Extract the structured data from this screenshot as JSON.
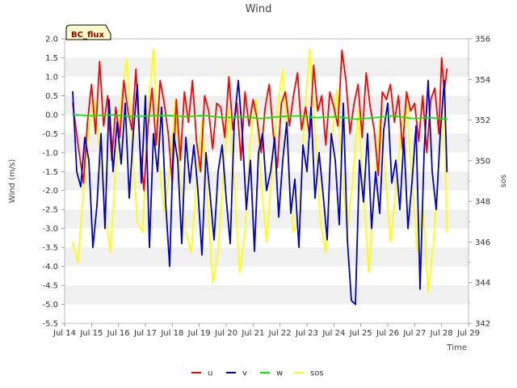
{
  "chart_data": {
    "type": "line",
    "title": "Wind",
    "badge": "BC_flux",
    "xlabel": "Time",
    "ylabel": "Wind (m/s)",
    "y2label": "sos",
    "xlim": [
      14,
      29
    ],
    "ylim": [
      -5.5,
      2.0
    ],
    "y2lim": [
      342,
      356
    ],
    "grid": "horizontal bands",
    "legend_position": "bottom-center",
    "x_ticks": [
      {
        "value": 14,
        "label": "Jul 14"
      },
      {
        "value": 15,
        "label": "Jul 15"
      },
      {
        "value": 16,
        "label": "Jul 16"
      },
      {
        "value": 17,
        "label": "Jul 17"
      },
      {
        "value": 18,
        "label": "Jul 18"
      },
      {
        "value": 19,
        "label": "Jul 19"
      },
      {
        "value": 20,
        "label": "Jul 20"
      },
      {
        "value": 21,
        "label": "Jul 21"
      },
      {
        "value": 22,
        "label": "Jul 22"
      },
      {
        "value": 23,
        "label": "Jul 23"
      },
      {
        "value": 24,
        "label": "Jul 24"
      },
      {
        "value": 25,
        "label": "Jul 25"
      },
      {
        "value": 26,
        "label": "Jul 26"
      },
      {
        "value": 27,
        "label": "Jul 27"
      },
      {
        "value": 28,
        "label": "Jul 28"
      },
      {
        "value": 29,
        "label": "Jul 29"
      }
    ],
    "y_ticks": [
      {
        "value": 2.0,
        "label": "2.0"
      },
      {
        "value": 1.5,
        "label": "1.5"
      },
      {
        "value": 1.0,
        "label": "1.0"
      },
      {
        "value": 0.5,
        "label": "0.5"
      },
      {
        "value": 0.0,
        "label": "0.0"
      },
      {
        "value": -0.5,
        "label": "-0.5"
      },
      {
        "value": -1.0,
        "label": "-1.0"
      },
      {
        "value": -1.5,
        "label": "-1.5"
      },
      {
        "value": -2.0,
        "label": "-2.0"
      },
      {
        "value": -2.5,
        "label": "-2.5"
      },
      {
        "value": -3.0,
        "label": "-3.0"
      },
      {
        "value": -3.5,
        "label": "-3.5"
      },
      {
        "value": -4.0,
        "label": "-4.0"
      },
      {
        "value": -4.5,
        "label": "-4.5"
      },
      {
        "value": -5.0,
        "label": "-5.0"
      },
      {
        "value": -5.5,
        "label": "-5.5"
      }
    ],
    "y2_ticks": [
      {
        "value": 356,
        "label": "356"
      },
      {
        "value": 354,
        "label": "354"
      },
      {
        "value": 352,
        "label": "352"
      },
      {
        "value": 350,
        "label": "350"
      },
      {
        "value": 348,
        "label": "348"
      },
      {
        "value": 346,
        "label": "346"
      },
      {
        "value": 344,
        "label": "344"
      },
      {
        "value": 342,
        "label": "342"
      }
    ],
    "series": [
      {
        "name": "u",
        "axis": "left",
        "color": "#ff0000",
        "x": [
          14.3,
          14.5,
          14.7,
          14.85,
          15.0,
          15.15,
          15.3,
          15.45,
          15.6,
          15.75,
          15.9,
          16.05,
          16.2,
          16.35,
          16.5,
          16.65,
          16.8,
          16.95,
          17.1,
          17.25,
          17.4,
          17.55,
          17.7,
          17.85,
          18.0,
          18.15,
          18.3,
          18.45,
          18.6,
          18.75,
          18.9,
          19.05,
          19.2,
          19.35,
          19.5,
          19.65,
          19.8,
          19.95,
          20.1,
          20.25,
          20.4,
          20.55,
          20.7,
          20.85,
          21.0,
          21.15,
          21.3,
          21.45,
          21.6,
          21.75,
          21.9,
          22.05,
          22.2,
          22.35,
          22.5,
          22.65,
          22.8,
          22.95,
          23.1,
          23.25,
          23.4,
          23.55,
          23.7,
          23.85,
          24.0,
          24.15,
          24.3,
          24.45,
          24.6,
          24.75,
          24.9,
          25.05,
          25.2,
          25.35,
          25.5,
          25.65,
          25.8,
          25.95,
          26.1,
          26.25,
          26.4,
          26.55,
          26.7,
          26.85,
          27.0,
          27.15,
          27.3,
          27.45,
          27.6,
          27.75,
          27.9,
          28.0,
          28.1,
          28.2
        ],
        "y": [
          0.3,
          -0.8,
          -1.8,
          -0.2,
          0.8,
          -0.5,
          1.4,
          -0.3,
          0.5,
          -1.2,
          0.2,
          -0.6,
          0.9,
          0.1,
          -0.4,
          1.2,
          -0.9,
          -2.0,
          -0.3,
          0.7,
          -0.8,
          0.9,
          0.3,
          -0.5,
          -1.8,
          0.4,
          -1.2,
          0.6,
          -0.2,
          0.9,
          -0.7,
          -1.5,
          0.5,
          0.1,
          -0.9,
          0.3,
          0.2,
          -0.6,
          1.0,
          -0.4,
          0.3,
          -1.2,
          0.6,
          -0.3,
          0.4,
          -0.1,
          -1.0,
          0.2,
          0.8,
          -0.5,
          -1.4,
          0.3,
          0.6,
          -0.3,
          0.5,
          1.1,
          -0.4,
          0.2,
          -0.6,
          1.3,
          0.1,
          0.5,
          -0.8,
          0.6,
          0.2,
          -0.3,
          1.7,
          0.9,
          -0.5,
          0.3,
          0.8,
          -0.6,
          1.1,
          0.2,
          -0.4,
          -1.6,
          0.6,
          0.4,
          0.8,
          -0.2,
          0.5,
          -0.9,
          0.6,
          0.1,
          0.3,
          -0.7,
          0.5,
          -1.0,
          0.4,
          0.7,
          -0.5,
          1.5,
          0.6,
          1.2
        ]
      },
      {
        "name": "v",
        "axis": "left",
        "color": "#0000cc",
        "x": [
          14.3,
          14.45,
          14.6,
          14.75,
          14.9,
          15.05,
          15.2,
          15.35,
          15.5,
          15.65,
          15.8,
          15.95,
          16.1,
          16.25,
          16.4,
          16.55,
          16.7,
          16.85,
          17.0,
          17.15,
          17.3,
          17.45,
          17.6,
          17.75,
          17.9,
          18.05,
          18.2,
          18.35,
          18.5,
          18.65,
          18.8,
          18.95,
          19.1,
          19.25,
          19.4,
          19.55,
          19.7,
          19.85,
          20.0,
          20.15,
          20.3,
          20.45,
          20.6,
          20.75,
          20.9,
          21.05,
          21.2,
          21.35,
          21.5,
          21.65,
          21.8,
          21.95,
          22.1,
          22.25,
          22.4,
          22.55,
          22.7,
          22.85,
          23.0,
          23.15,
          23.3,
          23.45,
          23.6,
          23.75,
          23.9,
          24.05,
          24.2,
          24.35,
          24.5,
          24.65,
          24.8,
          24.95,
          25.1,
          25.25,
          25.4,
          25.55,
          25.7,
          25.85,
          26.0,
          26.15,
          26.3,
          26.45,
          26.6,
          26.75,
          26.9,
          27.05,
          27.2,
          27.35,
          27.5,
          27.65,
          27.8,
          27.95,
          28.1,
          28.2
        ],
        "y": [
          0.6,
          -1.5,
          -1.9,
          -0.6,
          -1.2,
          -3.5,
          -2.4,
          -0.5,
          -3.0,
          0.4,
          -1.5,
          -0.2,
          -1.3,
          0.3,
          -2.2,
          -0.5,
          0.8,
          -1.8,
          0.5,
          -3.5,
          -0.5,
          -1.5,
          0.2,
          -2.3,
          -4.0,
          -0.5,
          -1.2,
          -3.4,
          -0.6,
          -1.8,
          -0.8,
          -2.0,
          -3.7,
          -1.0,
          -2.1,
          -3.3,
          -1.5,
          -0.8,
          -2.2,
          -3.4,
          -0.2,
          0.9,
          -0.5,
          -2.5,
          -1.2,
          -3.6,
          -1.0,
          -0.5,
          -2.0,
          -1.5,
          -0.6,
          -2.7,
          -1.2,
          -0.2,
          -2.6,
          -1.7,
          -3.5,
          -0.8,
          -1.5,
          0.2,
          -2.2,
          -1.0,
          -2.1,
          -3.3,
          -0.5,
          -1.2,
          -2.9,
          0.3,
          -3.3,
          -4.9,
          -5.0,
          -1.2,
          -2.3,
          -0.5,
          -3.0,
          -1.5,
          -2.6,
          -0.4,
          0.3,
          -1.8,
          -1.2,
          -2.5,
          -0.6,
          -3.0,
          -1.8,
          -0.3,
          -4.6,
          -1.0,
          0.9,
          -1.5,
          -2.5,
          -0.5,
          0.9,
          -1.5
        ]
      },
      {
        "name": "w",
        "axis": "left",
        "color": "#00ee00",
        "x": [
          14.3,
          15.0,
          15.7,
          16.4,
          17.1,
          17.8,
          18.5,
          19.2,
          19.9,
          20.6,
          21.3,
          22.0,
          22.7,
          23.4,
          24.1,
          24.8,
          25.5,
          26.2,
          26.9,
          27.6,
          28.2
        ],
        "y": [
          0.0,
          -0.03,
          0.0,
          -0.05,
          -0.03,
          -0.02,
          -0.05,
          -0.02,
          -0.08,
          -0.05,
          -0.1,
          -0.05,
          -0.03,
          -0.08,
          -0.05,
          -0.12,
          -0.08,
          -0.03,
          -0.1,
          -0.08,
          -0.12
        ]
      },
      {
        "name": "sos",
        "axis": "right",
        "color": "#ffff00",
        "x": [
          14.3,
          14.5,
          14.7,
          14.9,
          15.1,
          15.3,
          15.5,
          15.7,
          15.9,
          16.1,
          16.3,
          16.5,
          16.7,
          16.9,
          17.1,
          17.3,
          17.5,
          17.7,
          17.9,
          18.1,
          18.3,
          18.5,
          18.7,
          18.9,
          19.1,
          19.3,
          19.5,
          19.7,
          19.9,
          20.1,
          20.3,
          20.5,
          20.7,
          20.9,
          21.1,
          21.3,
          21.5,
          21.7,
          21.9,
          22.1,
          22.3,
          22.5,
          22.7,
          22.9,
          23.1,
          23.3,
          23.5,
          23.7,
          23.9,
          24.1,
          24.3,
          24.5,
          24.7,
          24.9,
          25.1,
          25.3,
          25.5,
          25.7,
          25.9,
          26.1,
          26.3,
          26.5,
          26.7,
          26.9,
          27.1,
          27.3,
          27.5,
          27.7,
          27.9,
          28.1,
          28.2
        ],
        "y": [
          346.0,
          345.0,
          348.5,
          351.5,
          353.0,
          350.5,
          347.5,
          345.5,
          349.5,
          353.0,
          355.0,
          351.0,
          347.0,
          346.5,
          352.5,
          355.5,
          350.0,
          347.5,
          349.5,
          353.0,
          349.0,
          346.5,
          345.5,
          349.0,
          352.0,
          348.0,
          344.0,
          345.5,
          349.5,
          352.5,
          349.0,
          344.5,
          346.5,
          351.0,
          353.0,
          349.0,
          346.0,
          349.5,
          352.5,
          354.5,
          350.0,
          346.5,
          347.0,
          352.0,
          355.5,
          351.5,
          347.0,
          345.5,
          350.5,
          353.5,
          349.5,
          346.5,
          349.0,
          352.5,
          348.5,
          344.5,
          348.5,
          352.0,
          349.5,
          346.0,
          348.5,
          351.5,
          353.0,
          349.0,
          345.5,
          348.0,
          343.5,
          346.0,
          350.0,
          352.5,
          346.5
        ]
      }
    ]
  }
}
